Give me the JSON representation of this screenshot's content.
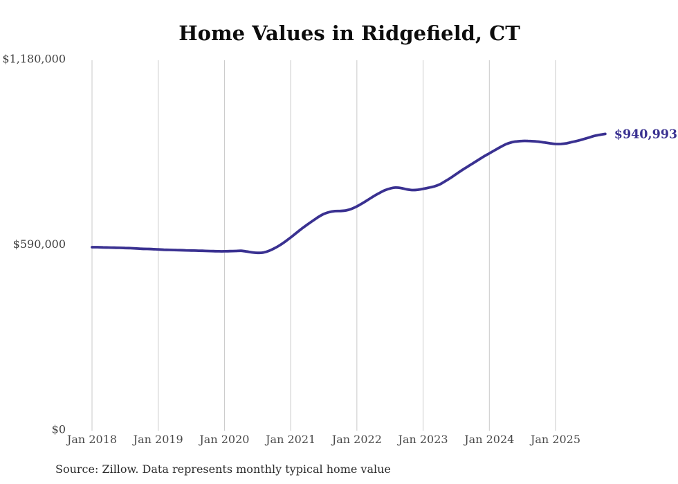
{
  "page": {
    "background": "#ffffff"
  },
  "chart_data": {
    "type": "line",
    "title": "Home Values in Ridgefield, CT",
    "xlabel": "",
    "ylabel": "",
    "x_start_label": "Jan 2018",
    "x_interval": "monthly",
    "x_tick_labels": [
      "Jan 2018",
      "Jan 2019",
      "Jan 2020",
      "Jan 2021",
      "Jan 2022",
      "Jan 2023",
      "Jan 2024",
      "Jan 2025"
    ],
    "y_ticks": [
      {
        "value": 0,
        "label": "$0"
      },
      {
        "value": 590000,
        "label": "$590,000"
      },
      {
        "value": 1180000,
        "label": "$1,180,000"
      }
    ],
    "ylim": [
      0,
      1180000
    ],
    "grid": "vertical-only",
    "legend": "none",
    "line_color": "#3a3191",
    "grid_color": "#c9c9c9",
    "end_label": "$940,993",
    "last_value": 940993,
    "values": [
      580000,
      580000,
      579500,
      579000,
      578500,
      578000,
      577500,
      577000,
      576000,
      575000,
      574500,
      574000,
      573000,
      572000,
      571500,
      571000,
      570500,
      570000,
      569500,
      569000,
      568500,
      568000,
      567500,
      567000,
      567000,
      567500,
      568000,
      568500,
      566500,
      563500,
      562000,
      563000,
      568000,
      576000,
      586000,
      598000,
      611000,
      625000,
      639000,
      652000,
      664000,
      676000,
      686000,
      692000,
      695000,
      695500,
      697000,
      702000,
      710000,
      720000,
      731000,
      742000,
      752000,
      761000,
      767000,
      770000,
      768500,
      764500,
      762000,
      763000,
      766000,
      769500,
      773500,
      780000,
      790000,
      801000,
      813000,
      825000,
      836000,
      847000,
      858000,
      869000,
      879000,
      889000,
      899000,
      908000,
      914000,
      917000,
      918500,
      918500,
      917500,
      916000,
      913500,
      911000,
      909000,
      909000,
      911000,
      915000,
      919000,
      924000,
      929000,
      934500,
      938000,
      940993
    ]
  },
  "source": {
    "text": "Source: Zillow. Data represents monthly typical home value"
  }
}
